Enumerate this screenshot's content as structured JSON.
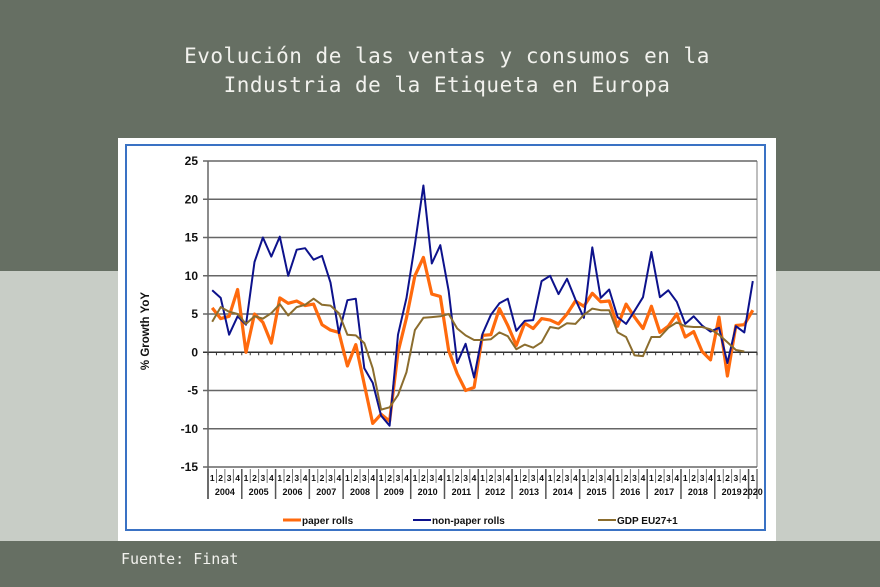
{
  "page": {
    "title": "Evolución de las ventas y consumos en la\nIndustria de la Etiqueta en Europa",
    "source": "Fuente: Finat"
  },
  "colors": {
    "paper_rolls": "#ff6a0d",
    "non_paper_rolls": "#0d128c",
    "gdp": "#8b6d2e",
    "background_dark": "#666f63",
    "background_light": "#c8cdc6",
    "frame": "#3a72c4"
  },
  "chart_data": {
    "type": "line",
    "title": "",
    "xlabel": "",
    "ylabel": "% Growth YoY",
    "ylim": [
      -15,
      25
    ],
    "yticks": [
      25,
      20,
      15,
      10,
      5,
      0,
      -5,
      -10,
      -15
    ],
    "grid": true,
    "legend_position": "bottom",
    "quarter_labels": [
      "1",
      "2",
      "3",
      "4"
    ],
    "years": [
      "2004",
      "2005",
      "2006",
      "2007",
      "2008",
      "2009",
      "2010",
      "2011",
      "2012",
      "2013",
      "2014",
      "2015",
      "2016",
      "2017",
      "2018",
      "2019",
      "2020"
    ],
    "x": [
      "2004Q1",
      "2004Q2",
      "2004Q3",
      "2004Q4",
      "2005Q1",
      "2005Q2",
      "2005Q3",
      "2005Q4",
      "2006Q1",
      "2006Q2",
      "2006Q3",
      "2006Q4",
      "2007Q1",
      "2007Q2",
      "2007Q3",
      "2007Q4",
      "2008Q1",
      "2008Q2",
      "2008Q3",
      "2008Q4",
      "2009Q1",
      "2009Q2",
      "2009Q3",
      "2009Q4",
      "2010Q1",
      "2010Q2",
      "2010Q3",
      "2010Q4",
      "2011Q1",
      "2011Q2",
      "2011Q3",
      "2011Q4",
      "2012Q1",
      "2012Q2",
      "2012Q3",
      "2012Q4",
      "2013Q1",
      "2013Q2",
      "2013Q3",
      "2013Q4",
      "2014Q1",
      "2014Q2",
      "2014Q3",
      "2014Q4",
      "2015Q1",
      "2015Q2",
      "2015Q3",
      "2015Q4",
      "2016Q1",
      "2016Q2",
      "2016Q3",
      "2016Q4",
      "2017Q1",
      "2017Q2",
      "2017Q3",
      "2017Q4",
      "2018Q1",
      "2018Q2",
      "2018Q3",
      "2018Q4",
      "2019Q1",
      "2019Q2",
      "2019Q3",
      "2019Q4",
      "2020Q1"
    ],
    "series": [
      {
        "name": "paper rolls",
        "color": "#ff6a0d",
        "values": [
          5.8,
          4.4,
          4.7,
          8.2,
          0.0,
          5.0,
          3.9,
          1.2,
          7.1,
          6.4,
          6.7,
          6.1,
          6.3,
          3.6,
          2.9,
          2.6,
          -1.8,
          1.0,
          -4.2,
          -9.3,
          -8.1,
          -9.0,
          0.0,
          4.5,
          10.0,
          12.4,
          7.6,
          7.3,
          0.2,
          -2.8,
          -5.0,
          -4.6,
          2.2,
          2.3,
          5.7,
          3.5,
          0.9,
          3.8,
          3.1,
          4.4,
          4.2,
          3.7,
          5.0,
          6.7,
          6.0,
          7.7,
          6.6,
          6.7,
          3.4,
          6.3,
          4.6,
          3.1,
          6.0,
          2.6,
          3.4,
          5.0,
          2.0,
          2.7,
          0.1,
          -1.0,
          4.6,
          -3.1,
          3.5,
          3.6,
          5.5
        ]
      },
      {
        "name": "non-paper rolls",
        "color": "#0d128c",
        "values": [
          8.1,
          7.1,
          2.3,
          4.7,
          3.6,
          11.8,
          15.0,
          12.5,
          15.1,
          10.0,
          13.4,
          13.6,
          12.1,
          12.6,
          9.1,
          2.5,
          6.8,
          7.0,
          -2.1,
          -4.0,
          -8.3,
          -9.6,
          2.3,
          7.1,
          14.1,
          21.8,
          11.6,
          14.0,
          8.0,
          -1.4,
          1.1,
          -3.3,
          2.4,
          4.9,
          6.4,
          7.0,
          2.8,
          4.1,
          4.2,
          9.3,
          10.0,
          7.6,
          9.6,
          6.9,
          4.5,
          13.7,
          7.1,
          8.2,
          4.6,
          3.7,
          5.4,
          7.2,
          13.1,
          7.2,
          8.1,
          6.6,
          3.7,
          4.7,
          3.5,
          2.7,
          3.2,
          -1.4,
          3.4,
          2.6,
          9.3
        ]
      },
      {
        "name": "GDP EU27+1",
        "color": "#8b6d2e",
        "values": [
          4.0,
          5.9,
          5.3,
          5.0,
          3.7,
          4.7,
          4.4,
          5.1,
          6.3,
          4.8,
          5.9,
          6.2,
          7.0,
          6.2,
          6.1,
          5.1,
          2.3,
          2.2,
          1.2,
          -2.1,
          -7.5,
          -7.2,
          -5.6,
          -2.6,
          2.9,
          4.5,
          4.6,
          4.7,
          5.0,
          3.1,
          2.2,
          1.6,
          1.6,
          1.7,
          2.6,
          2.1,
          0.4,
          1.0,
          0.6,
          1.3,
          3.3,
          3.1,
          3.8,
          3.7,
          4.9,
          5.7,
          5.5,
          5.5,
          2.6,
          2.0,
          -0.4,
          -0.5,
          2.0,
          2.0,
          3.2,
          3.9,
          3.4,
          3.3,
          3.3,
          3.0,
          2.3,
          1.3,
          0.3,
          0.1,
          null
        ]
      }
    ],
    "legend": [
      "paper rolls",
      "non-paper rolls",
      "GDP EU27+1"
    ]
  }
}
